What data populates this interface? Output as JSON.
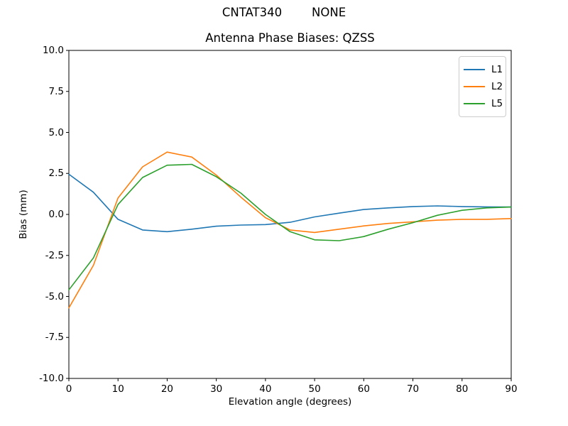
{
  "figure": {
    "suptitle": "CNTAT340        NONE",
    "title": "Antenna Phase Biases: QZSS",
    "xlabel": "Elevation angle (degrees)",
    "ylabel": "Bias (mm)"
  },
  "legend": {
    "entries": [
      "L1",
      "L2",
      "L5"
    ]
  },
  "chart_data": {
    "type": "line",
    "suptitle": "CNTAT340        NONE",
    "title": "Antenna Phase Biases: QZSS",
    "xlabel": "Elevation angle (degrees)",
    "ylabel": "Bias (mm)",
    "xlim": [
      0,
      90
    ],
    "ylim": [
      -10,
      10
    ],
    "xticks": [
      0,
      10,
      20,
      30,
      40,
      50,
      60,
      70,
      80,
      90
    ],
    "xtick_labels": [
      "0",
      "10",
      "20",
      "30",
      "40",
      "50",
      "60",
      "70",
      "80",
      "90"
    ],
    "yticks": [
      -10.0,
      -7.5,
      -5.0,
      -2.5,
      0.0,
      2.5,
      5.0,
      7.5,
      10.0
    ],
    "ytick_labels": [
      "-10.0",
      "-7.5",
      "-5.0",
      "-2.5",
      "0.0",
      "2.5",
      "5.0",
      "7.5",
      "10.0"
    ],
    "grid": false,
    "legend_position": "upper right",
    "axis_color": "#000000",
    "x": [
      0,
      5,
      10,
      15,
      20,
      25,
      30,
      35,
      40,
      45,
      50,
      55,
      60,
      65,
      70,
      75,
      80,
      85,
      90
    ],
    "series": [
      {
        "name": "L1",
        "color": "#1f77b4",
        "values": [
          2.45,
          1.35,
          -0.3,
          -0.95,
          -1.05,
          -0.9,
          -0.72,
          -0.65,
          -0.62,
          -0.48,
          -0.15,
          0.08,
          0.3,
          0.4,
          0.48,
          0.52,
          0.48,
          0.46,
          0.45
        ]
      },
      {
        "name": "L2",
        "color": "#ff7f0e",
        "values": [
          -5.7,
          -3.1,
          1.0,
          2.9,
          3.8,
          3.5,
          2.4,
          1.05,
          -0.2,
          -0.95,
          -1.1,
          -0.9,
          -0.7,
          -0.55,
          -0.45,
          -0.35,
          -0.3,
          -0.3,
          -0.25
        ]
      },
      {
        "name": "L5",
        "color": "#2ca02c",
        "values": [
          -4.6,
          -2.65,
          0.6,
          2.25,
          3.0,
          3.05,
          2.3,
          1.3,
          0.0,
          -1.05,
          -1.55,
          -1.6,
          -1.35,
          -0.9,
          -0.5,
          -0.05,
          0.25,
          0.4,
          0.45
        ]
      }
    ]
  }
}
